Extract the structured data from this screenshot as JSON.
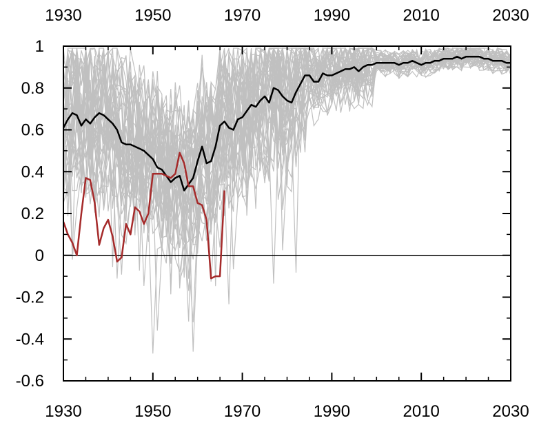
{
  "chart_data": {
    "type": "line",
    "title": "",
    "xlabel": "",
    "ylabel": "",
    "xlim": [
      1930,
      2030
    ],
    "ylim": [
      -0.6,
      1.0
    ],
    "x_ticks": [
      1930,
      1950,
      1970,
      1990,
      2010,
      2030
    ],
    "y_ticks": [
      -0.6,
      -0.4,
      -0.2,
      0,
      0.2,
      0.4,
      0.6,
      0.8,
      1
    ],
    "x_tick_labels": [
      "1930",
      "1950",
      "1970",
      "1990",
      "2010",
      "2030"
    ],
    "y_tick_labels": [
      "-0.6",
      "-0.4",
      "-0.2",
      "0",
      "0.2",
      "0.4",
      "0.6",
      "0.8",
      "1"
    ],
    "grid": false,
    "zero_line": true,
    "colors": {
      "mean": "#000000",
      "observed": "#a52a2a",
      "ensemble": "#c0c0c0"
    },
    "ensemble_members": 40,
    "series": [
      {
        "key": "mean",
        "x": [
          1930,
          1931,
          1932,
          1933,
          1934,
          1935,
          1936,
          1937,
          1938,
          1939,
          1940,
          1941,
          1942,
          1943,
          1944,
          1945,
          1946,
          1947,
          1948,
          1949,
          1950,
          1951,
          1952,
          1953,
          1954,
          1955,
          1956,
          1957,
          1958,
          1959,
          1960,
          1961,
          1962,
          1963,
          1964,
          1965,
          1966,
          1967,
          1968,
          1969,
          1970,
          1971,
          1972,
          1973,
          1974,
          1975,
          1976,
          1977,
          1978,
          1979,
          1980,
          1981,
          1982,
          1983,
          1984,
          1985,
          1986,
          1987,
          1988,
          1989,
          1990,
          1991,
          1992,
          1993,
          1994,
          1995,
          1996,
          1997,
          1998,
          1999,
          2000,
          2001,
          2002,
          2003,
          2004,
          2005,
          2006,
          2007,
          2008,
          2009,
          2010,
          2011,
          2012,
          2013,
          2014,
          2015,
          2016,
          2017,
          2018,
          2019,
          2020,
          2021,
          2022,
          2023,
          2024,
          2025,
          2026,
          2027,
          2028,
          2029,
          2030
        ],
        "values": [
          0.61,
          0.65,
          0.68,
          0.67,
          0.62,
          0.65,
          0.63,
          0.66,
          0.68,
          0.67,
          0.65,
          0.63,
          0.6,
          0.54,
          0.53,
          0.53,
          0.52,
          0.51,
          0.5,
          0.48,
          0.46,
          0.42,
          0.41,
          0.38,
          0.35,
          0.37,
          0.38,
          0.31,
          0.34,
          0.37,
          0.45,
          0.52,
          0.44,
          0.45,
          0.52,
          0.62,
          0.64,
          0.61,
          0.6,
          0.65,
          0.66,
          0.69,
          0.72,
          0.71,
          0.74,
          0.76,
          0.73,
          0.8,
          0.79,
          0.76,
          0.74,
          0.73,
          0.78,
          0.82,
          0.86,
          0.86,
          0.83,
          0.83,
          0.87,
          0.86,
          0.86,
          0.87,
          0.88,
          0.89,
          0.89,
          0.9,
          0.88,
          0.9,
          0.91,
          0.91,
          0.92,
          0.92,
          0.92,
          0.92,
          0.92,
          0.91,
          0.92,
          0.92,
          0.93,
          0.92,
          0.91,
          0.92,
          0.92,
          0.93,
          0.93,
          0.94,
          0.94,
          0.94,
          0.95,
          0.94,
          0.95,
          0.95,
          0.95,
          0.95,
          0.94,
          0.94,
          0.93,
          0.93,
          0.93,
          0.92,
          0.92
        ]
      },
      {
        "key": "observed",
        "x": [
          1930,
          1931,
          1932,
          1933,
          1934,
          1935,
          1936,
          1937,
          1938,
          1939,
          1940,
          1941,
          1942,
          1943,
          1944,
          1945,
          1946,
          1947,
          1948,
          1949,
          1950,
          1951,
          1952,
          1953,
          1954,
          1955,
          1956,
          1957,
          1958,
          1959,
          1960,
          1961,
          1962,
          1963,
          1964,
          1965,
          1966
        ],
        "values": [
          0.16,
          0.1,
          0.06,
          0.0,
          0.2,
          0.37,
          0.36,
          0.25,
          0.05,
          0.13,
          0.17,
          0.09,
          -0.03,
          -0.01,
          0.15,
          0.1,
          0.23,
          0.21,
          0.15,
          0.2,
          0.39,
          0.39,
          0.39,
          0.38,
          0.37,
          0.39,
          0.49,
          0.44,
          0.33,
          0.33,
          0.25,
          0.24,
          0.17,
          -0.11,
          -0.1,
          -0.1,
          0.31
        ]
      }
    ]
  }
}
